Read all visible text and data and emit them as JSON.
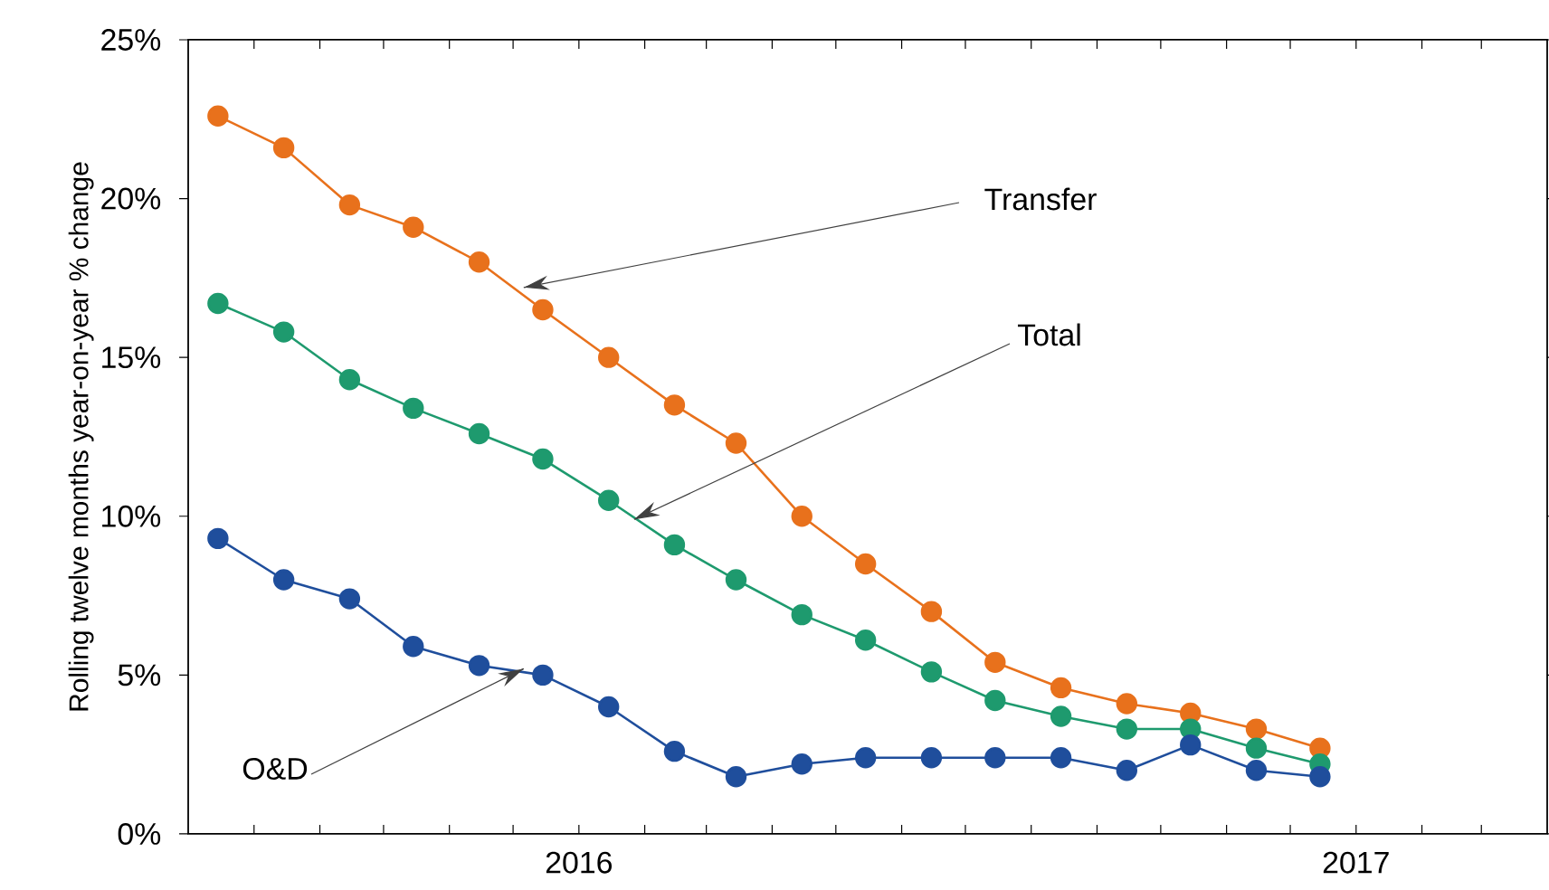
{
  "chart_data": {
    "type": "line",
    "ylabel": "Rolling twelve months year-on-year % change",
    "x": [
      "2015-07-15",
      "2015-08-15",
      "2015-09-15",
      "2015-10-15",
      "2015-11-15",
      "2015-12-15",
      "2016-01-15",
      "2016-02-15",
      "2016-03-15",
      "2016-04-15",
      "2016-05-15",
      "2016-06-15",
      "2016-07-15",
      "2016-08-15",
      "2016-09-15",
      "2016-10-15",
      "2016-11-15",
      "2016-12-15"
    ],
    "xlim": [
      "2015-07-01",
      "2017-04-01"
    ],
    "xticks": [
      {
        "value": "2015-08-01",
        "label": null
      },
      {
        "value": "2015-09-01",
        "label": null
      },
      {
        "value": "2015-10-01",
        "label": null
      },
      {
        "value": "2015-11-01",
        "label": null
      },
      {
        "value": "2015-12-01",
        "label": null
      },
      {
        "value": "2016-01-01",
        "label": "2016"
      },
      {
        "value": "2016-02-01",
        "label": null
      },
      {
        "value": "2016-03-01",
        "label": null
      },
      {
        "value": "2016-04-01",
        "label": null
      },
      {
        "value": "2016-05-01",
        "label": null
      },
      {
        "value": "2016-06-01",
        "label": null
      },
      {
        "value": "2016-07-01",
        "label": null
      },
      {
        "value": "2016-08-01",
        "label": null
      },
      {
        "value": "2016-09-01",
        "label": null
      },
      {
        "value": "2016-10-01",
        "label": null
      },
      {
        "value": "2016-11-01",
        "label": null
      },
      {
        "value": "2016-12-01",
        "label": null
      },
      {
        "value": "2017-01-01",
        "label": "2017"
      },
      {
        "value": "2017-02-01",
        "label": null
      },
      {
        "value": "2017-03-01",
        "label": null
      }
    ],
    "ylim": [
      0,
      25
    ],
    "yticks": [
      {
        "value": 0,
        "label": "0%"
      },
      {
        "value": 5,
        "label": "5%"
      },
      {
        "value": 10,
        "label": "10%"
      },
      {
        "value": 15,
        "label": "15%"
      },
      {
        "value": 20,
        "label": "20%"
      },
      {
        "value": 25,
        "label": "25%"
      }
    ],
    "series": [
      {
        "color": "#e8711c",
        "values": [
          22.6,
          21.6,
          19.8,
          19.1,
          18.0,
          16.5,
          15.0,
          13.5,
          12.3,
          10.0,
          8.5,
          7.0,
          5.4,
          4.6,
          4.1,
          3.8,
          3.3,
          2.7
        ]
      },
      {
        "color": "#1e9a6e",
        "values": [
          16.7,
          15.8,
          14.3,
          13.4,
          12.6,
          11.8,
          10.5,
          9.1,
          8.0,
          6.9,
          6.1,
          5.1,
          4.2,
          3.7,
          3.3,
          3.3,
          2.7,
          2.2
        ]
      },
      {
        "color": "#1f4e9c",
        "values": [
          9.3,
          8.0,
          7.4,
          5.9,
          5.3,
          5.0,
          4.0,
          2.6,
          1.8,
          2.2,
          2.4,
          2.4,
          2.4,
          2.4,
          2.0,
          2.8,
          2.0,
          1.8
        ]
      }
    ],
    "annotations": [
      {
        "text": "Transfer",
        "x": "2015-12-06",
        "y": 17.2
      },
      {
        "text": "Total",
        "x": "2016-01-27",
        "y": 9.9
      },
      {
        "text": "O&D",
        "x": "2015-12-06",
        "y": 5.2
      }
    ],
    "marker": "circle",
    "line_style": "solid",
    "grid": false
  }
}
